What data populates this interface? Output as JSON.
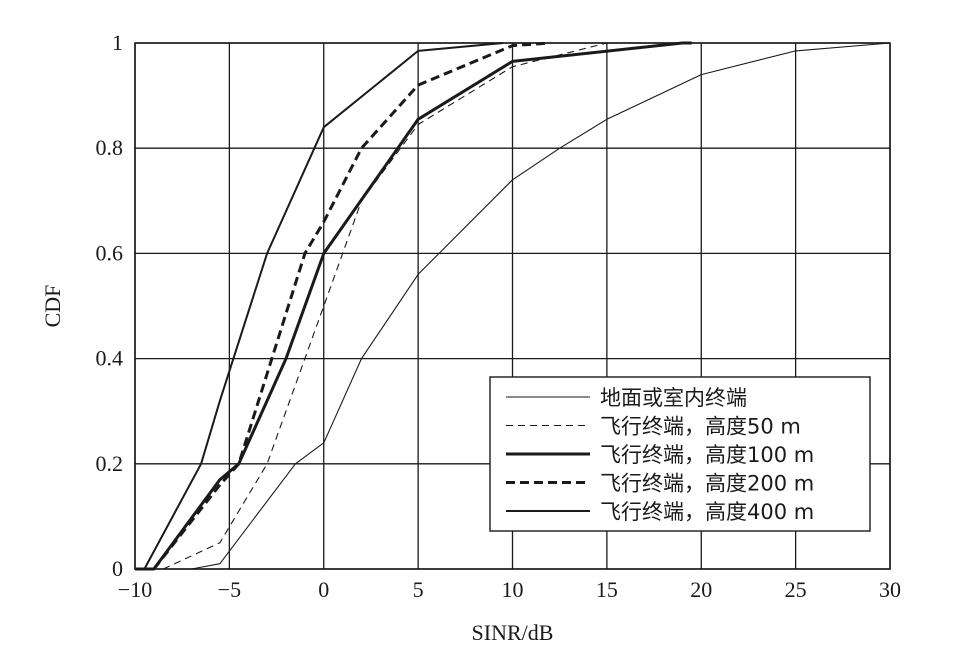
{
  "chart_data": {
    "type": "line",
    "xlabel": "SINR/dB",
    "ylabel": "CDF",
    "xlim": [
      -10,
      30
    ],
    "ylim": [
      0,
      1
    ],
    "xticks": [
      -10,
      -5,
      0,
      5,
      10,
      15,
      20,
      25,
      30
    ],
    "yticks": [
      0,
      0.2,
      0.4,
      0.6,
      0.8,
      1
    ],
    "xtick_labels": [
      "−10",
      "−5",
      "0",
      "5",
      "10",
      "15",
      "20",
      "25",
      "30"
    ],
    "ytick_labels": [
      "0",
      "0.2",
      "0.4",
      "0.6",
      "0.8",
      "1"
    ],
    "grid": true,
    "legend_position": "bottom-right",
    "line_color": "#1a1a1a",
    "series": [
      {
        "name": "地面或室内终端",
        "style": "solid-thin",
        "x": [
          -7,
          -5.5,
          -1.5,
          0,
          2,
          5,
          10,
          12.5,
          15,
          20,
          25,
          30
        ],
        "y": [
          0,
          0.01,
          0.2,
          0.24,
          0.4,
          0.56,
          0.74,
          0.8,
          0.855,
          0.94,
          0.985,
          1.0
        ]
      },
      {
        "name": "飞行终端，高度50 m",
        "style": "dashed-thin",
        "x": [
          -8.5,
          -5.5,
          -3,
          -0.5,
          0,
          2,
          5,
          10,
          15,
          19.5
        ],
        "y": [
          0,
          0.05,
          0.2,
          0.45,
          0.5,
          0.7,
          0.845,
          0.955,
          1.0,
          1.0
        ]
      },
      {
        "name": "飞行终端，高度100 m",
        "style": "solid-thick",
        "x": [
          -10,
          -9,
          -5.5,
          -4.5,
          -2,
          0,
          5,
          10,
          19,
          19.5
        ],
        "y": [
          0,
          0,
          0.17,
          0.2,
          0.4,
          0.6,
          0.855,
          0.965,
          1.0,
          1.0
        ]
      },
      {
        "name": "飞行终端，高度200 m",
        "style": "dashed-thick",
        "x": [
          -9,
          -5.5,
          -4.5,
          -1,
          0,
          2,
          5,
          10,
          12
        ],
        "y": [
          0,
          0.16,
          0.2,
          0.6,
          0.66,
          0.8,
          0.92,
          0.995,
          1.0
        ]
      },
      {
        "name": "飞行终端，高度400 m",
        "style": "solid-medium",
        "x": [
          -10,
          -9.5,
          -6.5,
          -5.5,
          -3,
          0,
          5,
          9.5
        ],
        "y": [
          0,
          0,
          0.2,
          0.32,
          0.6,
          0.84,
          0.985,
          1.0
        ]
      }
    ]
  }
}
